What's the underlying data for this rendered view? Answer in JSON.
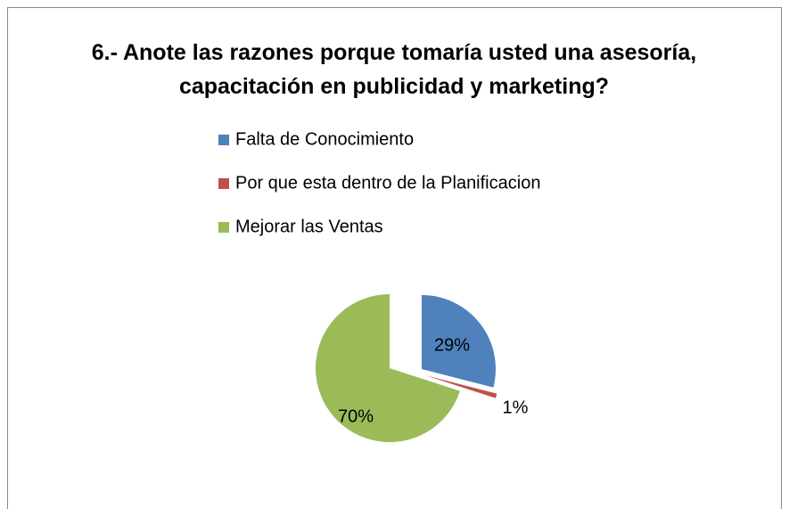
{
  "chart_data": {
    "type": "pie",
    "title": "6.- Anote las razones porque tomaría usted una asesoría, capacitación en publicidad y marketing?",
    "categories": [
      "Falta de Conocimiento",
      "Por que esta dentro de la Planificacion",
      "Mejorar las Ventas"
    ],
    "values": [
      29,
      1,
      70
    ],
    "value_labels": [
      "29%",
      "1%",
      "70%"
    ],
    "colors": [
      "#4f81bd",
      "#c0504d",
      "#9bbb59"
    ],
    "legend": "top"
  }
}
